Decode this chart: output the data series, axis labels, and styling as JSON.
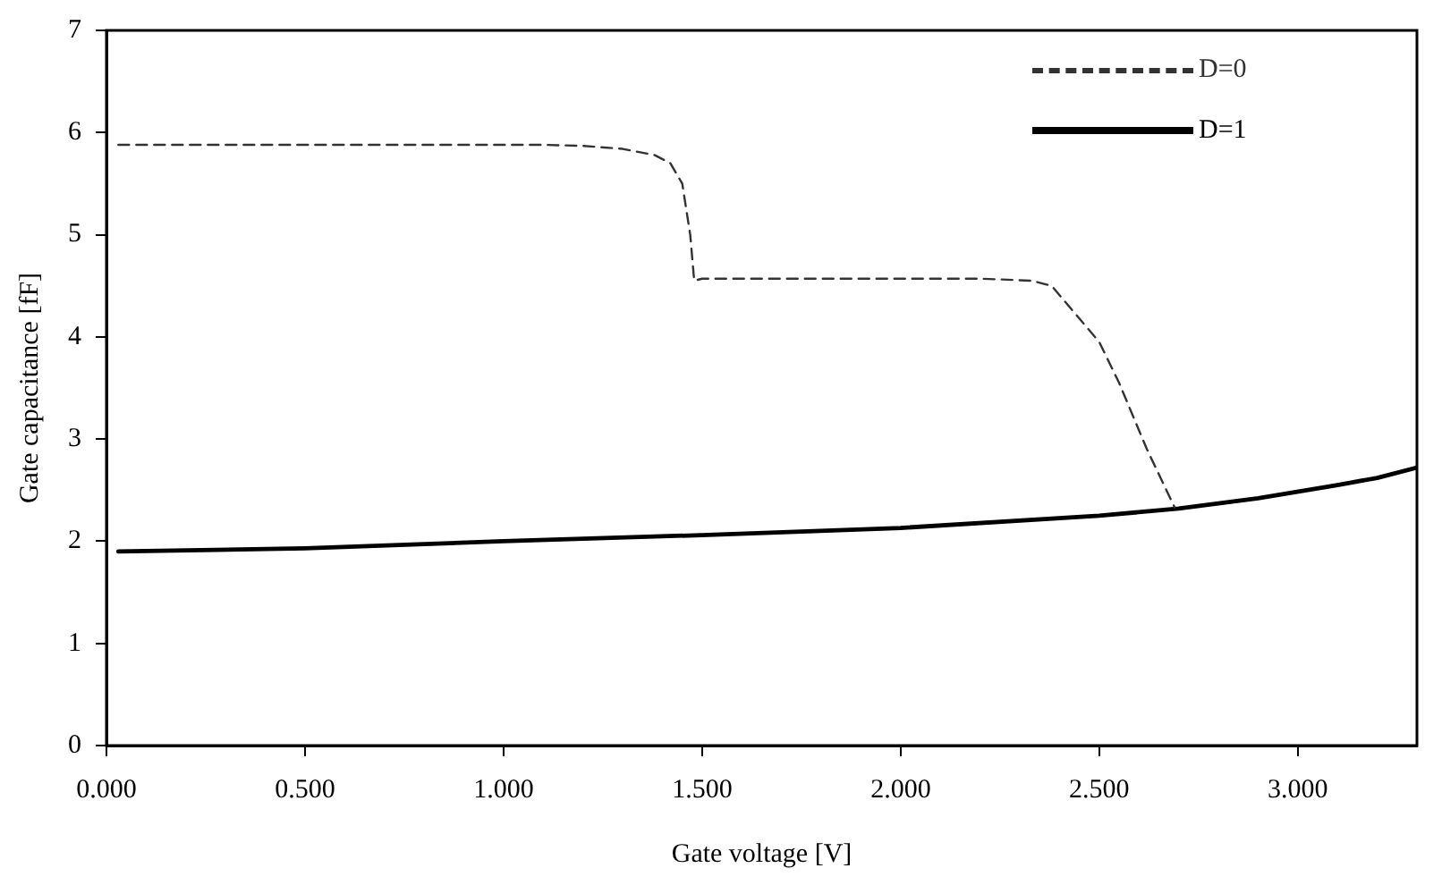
{
  "chart_data": {
    "type": "line",
    "xlabel": "Gate voltage [V]",
    "ylabel": "Gate capacitance [fF]",
    "xlim": [
      0,
      3.3
    ],
    "xticks": [
      {
        "value": 0,
        "label": "0.000"
      },
      {
        "value": 0.5,
        "label": "0.500"
      },
      {
        "value": 1,
        "label": "1.000"
      },
      {
        "value": 1.5,
        "label": "1.500"
      },
      {
        "value": 2,
        "label": "2.000"
      },
      {
        "value": 2.5,
        "label": "2.500"
      },
      {
        "value": 3,
        "label": "3.000"
      }
    ],
    "ylim": [
      0,
      7
    ],
    "yticks": [
      0,
      1,
      2,
      3,
      4,
      5,
      6,
      7
    ],
    "grid": false,
    "legend": "top right",
    "marker": "none",
    "series": [
      {
        "name": "D=0",
        "color": "#333333",
        "line_style": "dashed",
        "x": [
          0.03,
          0.5,
          1.0,
          1.1,
          1.2,
          1.3,
          1.38,
          1.42,
          1.45,
          1.47,
          1.48,
          1.5,
          1.8,
          2.2,
          2.33,
          2.38,
          2.5,
          2.55,
          2.62,
          2.69
        ],
        "values": [
          5.88,
          5.88,
          5.88,
          5.88,
          5.87,
          5.84,
          5.78,
          5.7,
          5.5,
          5.0,
          4.55,
          4.57,
          4.57,
          4.57,
          4.55,
          4.5,
          3.95,
          3.55,
          2.9,
          2.33
        ]
      },
      {
        "name": "D=1",
        "color": "#000000",
        "line_style": "solid",
        "x": [
          0.03,
          0.5,
          1.0,
          1.5,
          2.0,
          2.5,
          2.7,
          2.9,
          3.1,
          3.2,
          3.3
        ],
        "values": [
          1.9,
          1.93,
          2.0,
          2.06,
          2.13,
          2.25,
          2.32,
          2.42,
          2.55,
          2.62,
          2.72
        ]
      }
    ]
  }
}
